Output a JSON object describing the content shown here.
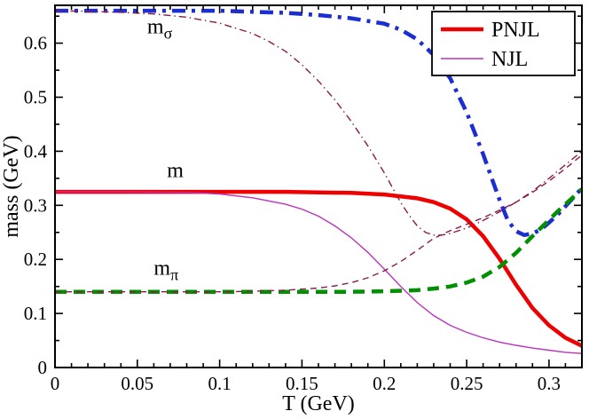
{
  "figure": {
    "background": "#ffffff",
    "frame_color": "#000000"
  },
  "chart_data": {
    "type": "line",
    "title": "",
    "xlabel": "T (GeV)",
    "ylabel": "mass (GeV)",
    "xlim": [
      0,
      0.32
    ],
    "ylim": [
      0,
      0.67
    ],
    "grid": false,
    "x_major_ticks": [
      0,
      0.05,
      0.1,
      0.15,
      0.2,
      0.25,
      0.3
    ],
    "x_tick_labels": [
      "0",
      "0.05",
      "0.1",
      "0.15",
      "0.2",
      "0.25",
      "0.3"
    ],
    "x_minor_step": 0.01,
    "y_major_ticks": [
      0,
      0.1,
      0.2,
      0.3,
      0.4,
      0.5,
      0.6
    ],
    "y_tick_labels": [
      "0",
      "0.1",
      "0.2",
      "0.3",
      "0.4",
      "0.5",
      "0.6"
    ],
    "y_minor_step": 0.05,
    "legend": {
      "position": "top-right",
      "border_color": "#000000",
      "entries": [
        {
          "label": "PNJL",
          "color": "#ee0000",
          "width": 4.5,
          "dash": "solid"
        },
        {
          "label": "NJL",
          "color": "#bb33bb",
          "width": 1.4,
          "dash": "solid"
        }
      ]
    },
    "annotations": [
      {
        "text": "m",
        "sub": "σ",
        "x": 0.056,
        "y": 0.618
      },
      {
        "text": "m",
        "sub": "",
        "x": 0.068,
        "y": 0.352
      },
      {
        "text": "m",
        "sub": "π",
        "x": 0.06,
        "y": 0.172
      }
    ],
    "series": [
      {
        "id": "m-sigma-pnjl",
        "name": "m_sigma PNJL",
        "model": "PNJL",
        "particle": "sigma",
        "color": "#1b2ed0",
        "width": 4.5,
        "dash": [
          15,
          7,
          4,
          7
        ],
        "points": [
          [
            0,
            0.66
          ],
          [
            0.02,
            0.66
          ],
          [
            0.04,
            0.66
          ],
          [
            0.06,
            0.66
          ],
          [
            0.08,
            0.66
          ],
          [
            0.1,
            0.66
          ],
          [
            0.12,
            0.658
          ],
          [
            0.14,
            0.656
          ],
          [
            0.16,
            0.652
          ],
          [
            0.18,
            0.646
          ],
          [
            0.2,
            0.636
          ],
          [
            0.21,
            0.625
          ],
          [
            0.22,
            0.607
          ],
          [
            0.23,
            0.578
          ],
          [
            0.24,
            0.535
          ],
          [
            0.25,
            0.472
          ],
          [
            0.26,
            0.395
          ],
          [
            0.265,
            0.352
          ],
          [
            0.27,
            0.31
          ],
          [
            0.275,
            0.272
          ],
          [
            0.28,
            0.252
          ],
          [
            0.285,
            0.245
          ],
          [
            0.29,
            0.248
          ],
          [
            0.295,
            0.255
          ],
          [
            0.3,
            0.268
          ],
          [
            0.305,
            0.282
          ],
          [
            0.31,
            0.298
          ],
          [
            0.315,
            0.315
          ],
          [
            0.32,
            0.332
          ]
        ]
      },
      {
        "id": "m-sigma-njl",
        "name": "m_sigma NJL",
        "model": "NJL",
        "particle": "sigma",
        "color": "#8b1a4a",
        "width": 1.4,
        "dash": [
          8,
          4,
          1.5,
          4
        ],
        "points": [
          [
            0,
            0.66
          ],
          [
            0.02,
            0.659
          ],
          [
            0.04,
            0.657
          ],
          [
            0.06,
            0.654
          ],
          [
            0.08,
            0.648
          ],
          [
            0.1,
            0.637
          ],
          [
            0.12,
            0.618
          ],
          [
            0.13,
            0.603
          ],
          [
            0.14,
            0.585
          ],
          [
            0.15,
            0.56
          ],
          [
            0.16,
            0.53
          ],
          [
            0.17,
            0.495
          ],
          [
            0.18,
            0.455
          ],
          [
            0.19,
            0.41
          ],
          [
            0.2,
            0.36
          ],
          [
            0.21,
            0.305
          ],
          [
            0.215,
            0.282
          ],
          [
            0.22,
            0.262
          ],
          [
            0.225,
            0.25
          ],
          [
            0.23,
            0.245
          ],
          [
            0.235,
            0.245
          ],
          [
            0.24,
            0.248
          ],
          [
            0.25,
            0.258
          ],
          [
            0.26,
            0.272
          ],
          [
            0.27,
            0.288
          ],
          [
            0.28,
            0.306
          ],
          [
            0.29,
            0.326
          ],
          [
            0.3,
            0.35
          ],
          [
            0.31,
            0.375
          ],
          [
            0.32,
            0.4
          ]
        ]
      },
      {
        "id": "m-quark-pnjl",
        "name": "m PNJL",
        "model": "PNJL",
        "particle": "quark",
        "color": "#ee0000",
        "width": 4.5,
        "dash": "solid",
        "points": [
          [
            0,
            0.325
          ],
          [
            0.05,
            0.325
          ],
          [
            0.1,
            0.325
          ],
          [
            0.14,
            0.325
          ],
          [
            0.18,
            0.323
          ],
          [
            0.2,
            0.32
          ],
          [
            0.22,
            0.313
          ],
          [
            0.23,
            0.306
          ],
          [
            0.24,
            0.294
          ],
          [
            0.25,
            0.274
          ],
          [
            0.26,
            0.243
          ],
          [
            0.27,
            0.201
          ],
          [
            0.28,
            0.153
          ],
          [
            0.29,
            0.11
          ],
          [
            0.3,
            0.078
          ],
          [
            0.31,
            0.055
          ],
          [
            0.32,
            0.04
          ]
        ]
      },
      {
        "id": "m-quark-njl",
        "name": "m NJL",
        "model": "NJL",
        "particle": "quark",
        "color": "#bb33bb",
        "width": 1.4,
        "dash": "solid",
        "points": [
          [
            0,
            0.325
          ],
          [
            0.04,
            0.325
          ],
          [
            0.08,
            0.324
          ],
          [
            0.1,
            0.321
          ],
          [
            0.12,
            0.314
          ],
          [
            0.14,
            0.302
          ],
          [
            0.15,
            0.293
          ],
          [
            0.16,
            0.28
          ],
          [
            0.17,
            0.262
          ],
          [
            0.18,
            0.24
          ],
          [
            0.19,
            0.213
          ],
          [
            0.2,
            0.182
          ],
          [
            0.21,
            0.15
          ],
          [
            0.22,
            0.12
          ],
          [
            0.23,
            0.096
          ],
          [
            0.24,
            0.078
          ],
          [
            0.25,
            0.065
          ],
          [
            0.26,
            0.055
          ],
          [
            0.27,
            0.047
          ],
          [
            0.28,
            0.041
          ],
          [
            0.29,
            0.036
          ],
          [
            0.3,
            0.032
          ],
          [
            0.31,
            0.028
          ],
          [
            0.32,
            0.026
          ]
        ]
      },
      {
        "id": "m-pi-pnjl",
        "name": "m_pi PNJL",
        "model": "PNJL",
        "particle": "pion",
        "color": "#009000",
        "width": 4.5,
        "dash": [
          13,
          8
        ],
        "points": [
          [
            0,
            0.14
          ],
          [
            0.05,
            0.14
          ],
          [
            0.1,
            0.14
          ],
          [
            0.15,
            0.14
          ],
          [
            0.18,
            0.14
          ],
          [
            0.2,
            0.141
          ],
          [
            0.22,
            0.143
          ],
          [
            0.23,
            0.146
          ],
          [
            0.24,
            0.15
          ],
          [
            0.25,
            0.157
          ],
          [
            0.26,
            0.168
          ],
          [
            0.27,
            0.186
          ],
          [
            0.28,
            0.212
          ],
          [
            0.29,
            0.243
          ],
          [
            0.3,
            0.273
          ],
          [
            0.305,
            0.288
          ],
          [
            0.31,
            0.302
          ],
          [
            0.315,
            0.316
          ],
          [
            0.32,
            0.33
          ]
        ]
      },
      {
        "id": "m-pi-njl",
        "name": "m_pi NJL",
        "model": "NJL",
        "particle": "pion",
        "color": "#8b1a4a",
        "width": 1.4,
        "dash": [
          7,
          5
        ],
        "points": [
          [
            0,
            0.14
          ],
          [
            0.05,
            0.14
          ],
          [
            0.1,
            0.14
          ],
          [
            0.12,
            0.141
          ],
          [
            0.14,
            0.143
          ],
          [
            0.16,
            0.147
          ],
          [
            0.17,
            0.151
          ],
          [
            0.18,
            0.157
          ],
          [
            0.19,
            0.166
          ],
          [
            0.2,
            0.179
          ],
          [
            0.21,
            0.196
          ],
          [
            0.22,
            0.217
          ],
          [
            0.23,
            0.239
          ],
          [
            0.24,
            0.253
          ],
          [
            0.25,
            0.265
          ],
          [
            0.26,
            0.277
          ],
          [
            0.27,
            0.291
          ],
          [
            0.28,
            0.306
          ],
          [
            0.29,
            0.324
          ],
          [
            0.3,
            0.345
          ],
          [
            0.31,
            0.368
          ],
          [
            0.32,
            0.393
          ]
        ]
      }
    ]
  }
}
